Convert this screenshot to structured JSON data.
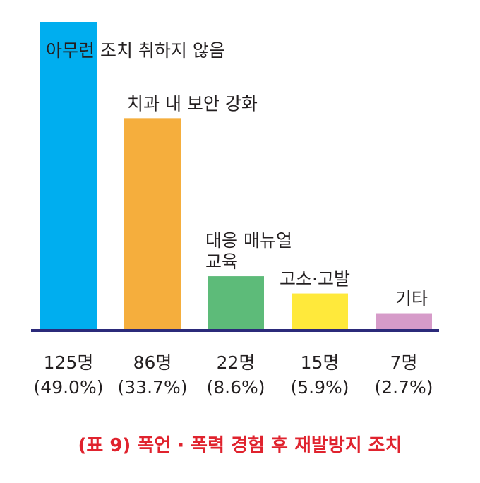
{
  "chart_data": {
    "type": "bar",
    "title": "(표 9) 폭언 · 폭력 경험 후 재발방지 조치",
    "categories": [
      [
        "아무런 조치  취하지 않음"
      ],
      [
        "치과 내 보안 강화"
      ],
      [
        "대응 매뉴얼",
        "교육"
      ],
      [
        "고소·고발"
      ],
      [
        "기타"
      ]
    ],
    "values": [
      125,
      86,
      22,
      15,
      7
    ],
    "value_labels": [
      "125명",
      "86명",
      "22명",
      "15명",
      "7명"
    ],
    "percent_labels": [
      "(49.0%)",
      "(33.7%)",
      "(8.6%)",
      "(5.9%)",
      "(2.7%)"
    ],
    "colors": [
      "#00aeef",
      "#f5ae3d",
      "#5dbb79",
      "#ffe93b",
      "#d69bc9"
    ],
    "axis_color": "#2b2a7a",
    "title_color": "#e0232e",
    "label_color": "#231f20",
    "grid": false,
    "legend": "none"
  }
}
